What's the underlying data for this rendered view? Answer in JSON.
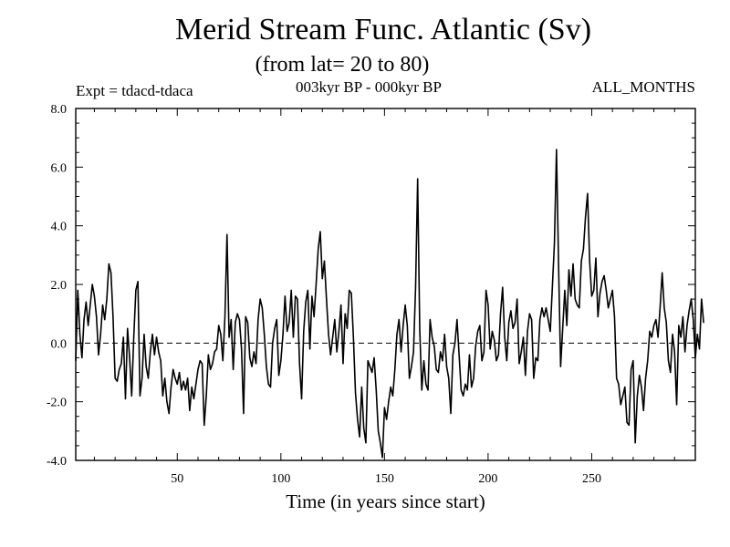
{
  "header": {
    "title": "Merid Stream Func. Atlantic (Sv)",
    "subtitle": "(from lat= 20 to 80)",
    "expt": "Expt = tdacd-tdaca",
    "period": "003kyr BP - 000kyr BP",
    "months": "ALL_MONTHS"
  },
  "chart_data": {
    "type": "line",
    "title": "Merid Stream Func. Atlantic (Sv)",
    "subtitle": "(from lat= 20 to 80)",
    "xlabel": "Time (in years since start)",
    "ylabel": "",
    "xlim": [
      1,
      300
    ],
    "ylim": [
      -4.0,
      8.0
    ],
    "x_ticks": [
      50,
      100,
      150,
      200,
      250
    ],
    "y_ticks": [
      -4.0,
      -2.0,
      0.0,
      2.0,
      4.0,
      6.0,
      8.0
    ],
    "y_tick_labels": [
      "-4.0",
      "-2.0",
      "0.0",
      "2.0",
      "4.0",
      "6.0",
      "8.0"
    ],
    "zero_line": "dashed",
    "grid": false,
    "series": [
      {
        "name": "tdacd-tdaca",
        "x_start": 1,
        "x_step": 1,
        "values": [
          -0.6,
          1.8,
          0.3,
          -0.5,
          0.8,
          1.4,
          0.6,
          1.3,
          2.0,
          1.6,
          0.9,
          -0.4,
          0.3,
          1.3,
          0.8,
          1.5,
          2.7,
          2.4,
          0.9,
          -1.2,
          -1.3,
          -0.9,
          -0.7,
          0.2,
          -1.9,
          0.5,
          -0.5,
          -1.8,
          0.2,
          1.8,
          2.1,
          -1.8,
          -1.2,
          0.3,
          -0.8,
          -1.2,
          -0.3,
          0.3,
          -0.4,
          0.2,
          -0.3,
          -0.6,
          -1.8,
          -1.2,
          -2.0,
          -2.4,
          -1.5,
          -0.9,
          -1.2,
          -1.4,
          -1.0,
          -1.6,
          -1.3,
          -1.6,
          -1.2,
          -2.3,
          -1.5,
          -1.9,
          -1.4,
          -0.9,
          -0.6,
          -0.7,
          -2.8,
          -1.8,
          -0.4,
          -0.9,
          -0.7,
          -0.3,
          -0.2,
          0.6,
          0.3,
          -0.6,
          0.9,
          3.7,
          0.2,
          0.8,
          -0.9,
          0.7,
          1.0,
          0.8,
          -0.2,
          -2.4,
          0.9,
          0.7,
          -0.5,
          -0.8,
          -0.3,
          -0.7,
          0.8,
          1.5,
          1.2,
          0.3,
          -0.8,
          -1.4,
          -1.5,
          0.0,
          0.5,
          0.8,
          -1.1,
          -0.6,
          0.3,
          1.6,
          0.4,
          0.7,
          1.8,
          0.2,
          1.6,
          1.5,
          -0.7,
          -1.9,
          0.4,
          1.4,
          1.8,
          -0.2,
          1.6,
          0.9,
          2.0,
          3.2,
          3.8,
          2.2,
          2.8,
          1.5,
          0.3,
          -0.4,
          0.2,
          0.8,
          -0.3,
          0.4,
          1.3,
          -0.7,
          1.0,
          0.5,
          1.8,
          1.7,
          0.2,
          -1.7,
          -2.6,
          -3.2,
          -1.5,
          -2.9,
          -3.4,
          -0.6,
          -0.8,
          -1.0,
          -0.5,
          -1.6,
          -3.0,
          -3.4,
          -3.9,
          -2.2,
          -2.6,
          -2.0,
          -1.5,
          -1.8,
          -0.9,
          0.3,
          0.8,
          -0.3,
          0.6,
          1.3,
          0.6,
          -1.2,
          -0.8,
          -0.3,
          1.9,
          5.6,
          0.5,
          -1.6,
          -0.6,
          -1.4,
          -1.6,
          0.8,
          0.2,
          -0.1,
          -0.9,
          -1.0,
          -0.3,
          -0.6,
          0.3,
          -0.8,
          -1.2,
          -2.4,
          -0.4,
          0.0,
          0.8,
          -0.4,
          -1.6,
          -1.8,
          -1.4,
          -1.6,
          -0.4,
          -1.5,
          -1.2,
          -0.1,
          0.4,
          0.6,
          -0.6,
          -0.3,
          1.8,
          1.3,
          -0.2,
          0.4,
          0.1,
          -0.6,
          -0.4,
          1.0,
          1.9,
          0.2,
          -0.6,
          0.7,
          1.1,
          0.5,
          0.7,
          1.5,
          -0.7,
          -0.3,
          0.2,
          -1.1,
          0.4,
          1.0,
          0.8,
          -1.2,
          -0.5,
          -0.6,
          0.8,
          1.2,
          0.9,
          1.2,
          0.8,
          0.4,
          1.9,
          3.4,
          6.6,
          2.7,
          -0.8,
          0.5,
          1.8,
          0.6,
          2.5,
          1.6,
          2.7,
          1.5,
          1.3,
          1.2,
          2.8,
          3.2,
          4.3,
          5.1,
          2.8,
          1.6,
          1.8,
          2.9,
          0.9,
          1.7,
          2.1,
          2.3,
          1.8,
          1.2,
          1.5,
          1.8,
          0.9,
          -1.2,
          -1.4,
          -2.1,
          -1.8,
          -1.5,
          -2.7,
          -2.8,
          -0.9,
          -0.6,
          -3.4,
          -1.8,
          -1.1,
          -1.5,
          -2.3,
          -1.2,
          -0.6,
          0.4,
          0.2,
          0.6,
          0.8,
          0.2,
          1.2,
          2.4,
          1.2,
          0.7,
          -0.6,
          -1.0,
          0.3,
          -0.3,
          -2.1,
          0.6,
          0.2,
          0.9,
          -0.3,
          0.6,
          1.1,
          1.5,
          0.8,
          -0.5,
          0.3,
          -0.2,
          1.5,
          0.7
        ]
      }
    ]
  }
}
